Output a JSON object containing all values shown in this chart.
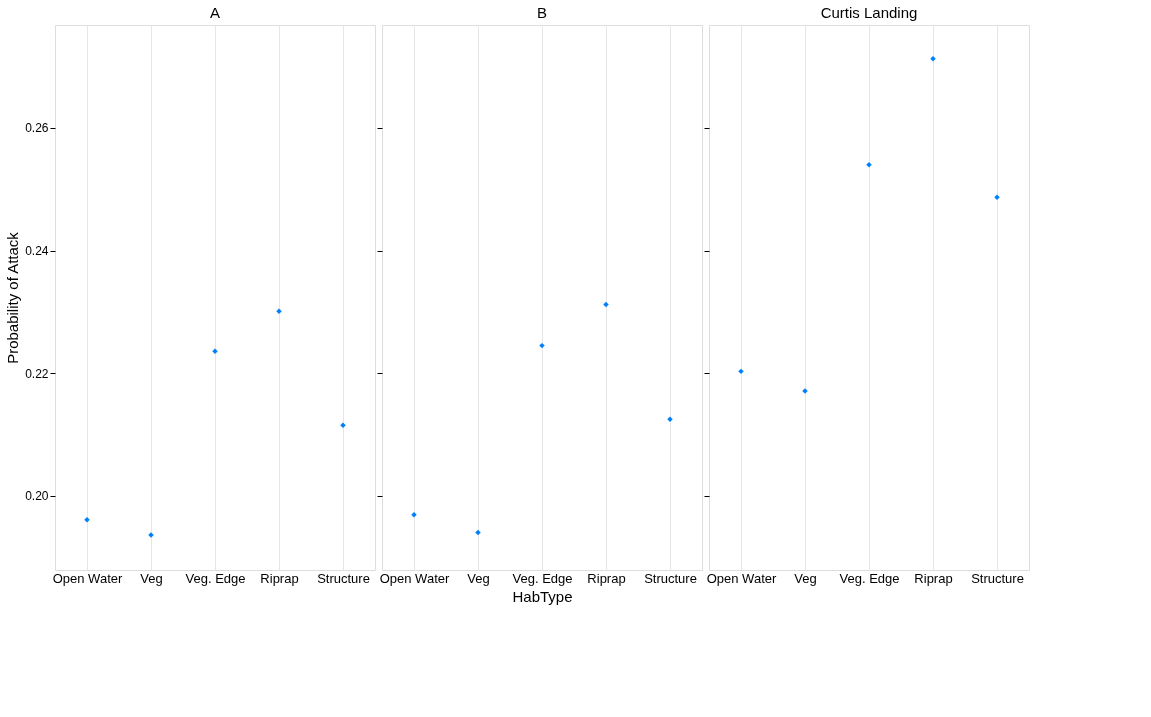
{
  "chart_data": [
    {
      "type": "scatter",
      "title": "A",
      "ylabel": "Probability of Attack",
      "categories": [
        "Open Water",
        "Veg",
        "Veg. Edge",
        "Riprap",
        "Structure"
      ],
      "values": [
        0.1961,
        0.1936,
        0.2236,
        0.2301,
        0.2115
      ],
      "color": "#0080ff",
      "marker": "diamond",
      "ylim": [
        0.1879,
        0.2768
      ],
      "yticks": [
        {
          "value": 0.2,
          "label": "0.20"
        },
        {
          "value": 0.22,
          "label": "0.22"
        },
        {
          "value": 0.24,
          "label": "0.24"
        },
        {
          "value": 0.26,
          "label": "0.26"
        }
      ],
      "grid": "x"
    },
    {
      "type": "scatter",
      "title": "B",
      "xlabel": "HabType",
      "categories": [
        "Open Water",
        "Veg",
        "Veg. Edge",
        "Riprap",
        "Structure"
      ],
      "values": [
        0.1969,
        0.194,
        0.2245,
        0.2312,
        0.2125
      ],
      "color": "#0080ff",
      "marker": "diamond",
      "ylim": [
        0.1879,
        0.2768
      ],
      "yticks": [
        0.2,
        0.22,
        0.24,
        0.26
      ],
      "grid": "x",
      "tick_labels": "x"
    },
    {
      "type": "scatter",
      "title": "Curtis Landing",
      "categories": [
        "Open Water",
        "Veg",
        "Veg. Edge",
        "Riprap",
        "Structure"
      ],
      "values": [
        0.2203,
        0.2171,
        0.254,
        0.2713,
        0.2487
      ],
      "color": "#0080ff",
      "marker": "diamond",
      "ylim": [
        0.1879,
        0.2768
      ],
      "yticks": [
        0.2,
        0.22,
        0.24,
        0.26
      ],
      "grid": "x",
      "tick_labels": "x"
    }
  ]
}
